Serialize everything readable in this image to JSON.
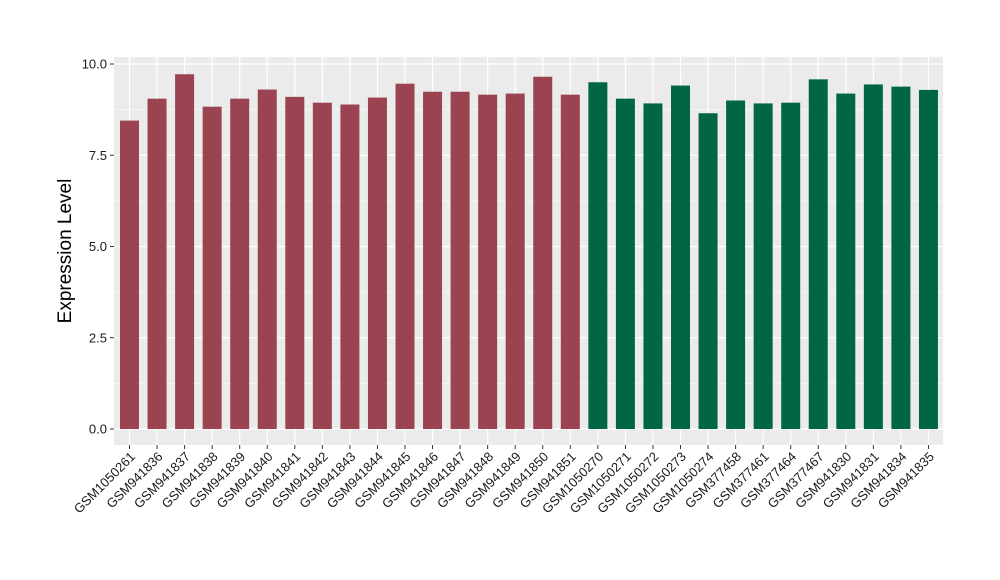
{
  "chart_data": {
    "type": "bar",
    "title": "",
    "xlabel": "",
    "ylabel": "Expression Level",
    "ylim": [
      0,
      10.25
    ],
    "yticks": [
      0.0,
      2.5,
      5.0,
      7.5,
      10.0
    ],
    "ytick_labels": [
      "0.0",
      "2.5",
      "5.0",
      "7.5",
      "10.0"
    ],
    "grid": true,
    "legend": "none",
    "background_color": "#ebebeb",
    "grid_color": "#ffffff",
    "categories": [
      "GSM1050261",
      "GSM941836",
      "GSM941837",
      "GSM941838",
      "GSM941839",
      "GSM941840",
      "GSM941841",
      "GSM941842",
      "GSM941843",
      "GSM941844",
      "GSM941845",
      "GSM941846",
      "GSM941847",
      "GSM941848",
      "GSM941849",
      "GSM941850",
      "GSM941851",
      "GSM1050270",
      "GSM1050271",
      "GSM1050272",
      "GSM1050273",
      "GSM1050274",
      "GSM377458",
      "GSM377461",
      "GSM377464",
      "GSM377467",
      "GSM941830",
      "GSM941831",
      "GSM941834",
      "GSM941835"
    ],
    "values": [
      8.45,
      9.05,
      9.72,
      8.83,
      9.05,
      9.3,
      9.1,
      8.94,
      8.89,
      9.08,
      9.46,
      9.24,
      9.24,
      9.16,
      9.19,
      9.65,
      9.16,
      9.5,
      9.05,
      8.92,
      9.41,
      8.65,
      9.0,
      8.92,
      8.94,
      9.58,
      9.19,
      9.44,
      9.38,
      9.29
    ],
    "bar_colors": [
      "#9b4350",
      "#9b4350",
      "#9b4350",
      "#9b4350",
      "#9b4350",
      "#9b4350",
      "#9b4350",
      "#9b4350",
      "#9b4350",
      "#9b4350",
      "#9b4350",
      "#9b4350",
      "#9b4350",
      "#9b4350",
      "#9b4350",
      "#9b4350",
      "#9b4350",
      "#006644",
      "#006644",
      "#006644",
      "#006644",
      "#006644",
      "#006644",
      "#006644",
      "#006644",
      "#006644",
      "#006644",
      "#006644",
      "#006644",
      "#006644"
    ]
  }
}
